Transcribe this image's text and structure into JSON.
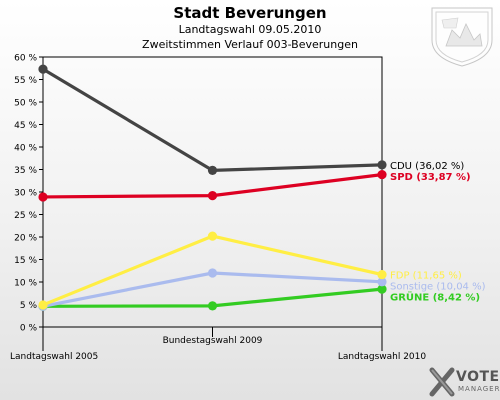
{
  "header": {
    "title": "Stadt Beverungen",
    "subtitle": "Landtagswahl 09.05.2010",
    "subtitle2": "Zweitstimmen Verlauf 003-Beverungen"
  },
  "logo": {
    "vote": "VOTE",
    "manager": "MANAGER",
    "crest_icon": "coat-of-arms-icon"
  },
  "chart_data": {
    "type": "line",
    "title": "Stadt Beverungen",
    "categories": [
      "Landtagswahl 2005",
      "Bundestagswahl 2009",
      "Landtagswahl 2010"
    ],
    "ylim": [
      0,
      60
    ],
    "yticks": [
      0,
      5,
      10,
      15,
      20,
      25,
      30,
      35,
      40,
      45,
      50,
      55,
      60
    ],
    "ytick_labels": [
      "0 %",
      "5 %",
      "10 %",
      "15 %",
      "20 %",
      "25 %",
      "30 %",
      "35 %",
      "40 %",
      "45 %",
      "50 %",
      "55 %",
      "60 %"
    ],
    "grid": false,
    "series": [
      {
        "name": "CDU",
        "values": [
          57.3,
          34.8,
          36.02
        ],
        "color": "#444444",
        "label": "CDU (36,02 %)"
      },
      {
        "name": "SPD",
        "values": [
          28.9,
          29.2,
          33.87
        ],
        "color": "#dd0022",
        "label": "SPD (33,87 %)"
      },
      {
        "name": "FDP",
        "values": [
          4.9,
          20.2,
          11.65
        ],
        "color": "#ffee44",
        "label": "FDP (11,65 %)"
      },
      {
        "name": "Sonstige",
        "values": [
          4.6,
          12.0,
          10.04
        ],
        "color": "#aabbee",
        "label": "Sonstige (10,04 %)"
      },
      {
        "name": "GRÜNE",
        "values": [
          4.6,
          4.7,
          8.42
        ],
        "color": "#33cc22",
        "label": "GRÜNE (8,42 %)"
      }
    ]
  }
}
